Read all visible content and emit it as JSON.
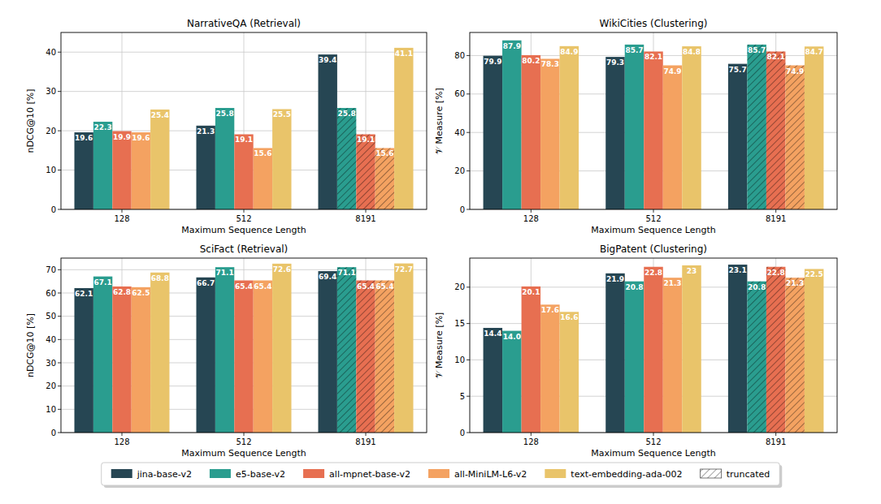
{
  "chart_data": [
    {
      "type": "bar",
      "title": "NarrativeQA (Retrieval)",
      "x_label": "Maximum Sequence Length",
      "y_label": "nDCG@10 [%]",
      "categories": [
        "128",
        "512",
        "8191"
      ],
      "ylim": [
        0,
        45
      ],
      "yticks": [
        0,
        10,
        20,
        30,
        40
      ],
      "grid": true,
      "data_labels": true,
      "legend": "bottom",
      "series": [
        {
          "name": "jina-base-v2",
          "color": "#264653",
          "values": [
            19.6,
            21.3,
            39.4
          ],
          "truncated": [
            false,
            false,
            false
          ]
        },
        {
          "name": "e5-base-v2",
          "color": "#2a9d8f",
          "values": [
            22.3,
            25.8,
            25.8
          ],
          "truncated": [
            false,
            false,
            true
          ]
        },
        {
          "name": "all-mpnet-base-v2",
          "color": "#e76f51",
          "values": [
            19.9,
            19.1,
            19.1
          ],
          "truncated": [
            false,
            false,
            true
          ]
        },
        {
          "name": "all-MiniLM-L6-v2",
          "color": "#f4a261",
          "values": [
            19.6,
            15.6,
            15.6
          ],
          "truncated": [
            false,
            false,
            true
          ]
        },
        {
          "name": "text-embedding-ada-002",
          "color": "#e9c46a",
          "values": [
            25.4,
            25.5,
            41.1
          ],
          "truncated": [
            false,
            false,
            false
          ]
        }
      ]
    },
    {
      "type": "bar",
      "title": "WikiCities (Clustering)",
      "x_label": "Maximum Sequence Length",
      "y_label": "𝒱 Measure [%]",
      "categories": [
        "128",
        "512",
        "8191"
      ],
      "ylim": [
        0,
        92
      ],
      "yticks": [
        0,
        20,
        40,
        60,
        80
      ],
      "grid": true,
      "data_labels": true,
      "series": [
        {
          "name": "jina-base-v2",
          "color": "#264653",
          "values": [
            79.9,
            79.3,
            75.7
          ],
          "truncated": [
            false,
            false,
            false
          ]
        },
        {
          "name": "e5-base-v2",
          "color": "#2a9d8f",
          "values": [
            87.9,
            85.7,
            85.7
          ],
          "truncated": [
            false,
            false,
            true
          ]
        },
        {
          "name": "all-mpnet-base-v2",
          "color": "#e76f51",
          "values": [
            80.2,
            82.1,
            82.1
          ],
          "truncated": [
            false,
            false,
            true
          ]
        },
        {
          "name": "all-MiniLM-L6-v2",
          "color": "#f4a261",
          "values": [
            78.3,
            74.9,
            74.9
          ],
          "truncated": [
            false,
            false,
            true
          ]
        },
        {
          "name": "text-embedding-ada-002",
          "color": "#e9c46a",
          "values": [
            84.9,
            84.8,
            84.7
          ],
          "truncated": [
            false,
            false,
            false
          ]
        }
      ]
    },
    {
      "type": "bar",
      "title": "SciFact (Retrieval)",
      "x_label": "Maximum Sequence Length",
      "y_label": "nDCG@10 [%]",
      "categories": [
        "128",
        "512",
        "8191"
      ],
      "ylim": [
        0,
        75
      ],
      "yticks": [
        0,
        10,
        20,
        30,
        40,
        50,
        60,
        70
      ],
      "grid": true,
      "data_labels": true,
      "series": [
        {
          "name": "jina-base-v2",
          "color": "#264653",
          "values": [
            62.1,
            66.7,
            69.4
          ],
          "truncated": [
            false,
            false,
            false
          ]
        },
        {
          "name": "e5-base-v2",
          "color": "#2a9d8f",
          "values": [
            67.1,
            71.1,
            71.1
          ],
          "truncated": [
            false,
            false,
            true
          ]
        },
        {
          "name": "all-mpnet-base-v2",
          "color": "#e76f51",
          "values": [
            62.8,
            65.4,
            65.4
          ],
          "truncated": [
            false,
            false,
            true
          ]
        },
        {
          "name": "all-MiniLM-L6-v2",
          "color": "#f4a261",
          "values": [
            62.5,
            65.4,
            65.4
          ],
          "truncated": [
            false,
            false,
            true
          ]
        },
        {
          "name": "text-embedding-ada-002",
          "color": "#e9c46a",
          "values": [
            68.8,
            72.6,
            72.7
          ],
          "truncated": [
            false,
            false,
            false
          ]
        }
      ]
    },
    {
      "type": "bar",
      "title": "BigPatent (Clustering)",
      "x_label": "Maximum Sequence Length",
      "y_label": "𝒱 Measure [%]",
      "categories": [
        "128",
        "512",
        "8191"
      ],
      "ylim": [
        0,
        24
      ],
      "yticks": [
        0,
        5,
        10,
        15,
        20
      ],
      "grid": true,
      "data_labels": true,
      "series": [
        {
          "name": "jina-base-v2",
          "color": "#264653",
          "values": [
            14.4,
            21.9,
            23.1
          ],
          "truncated": [
            false,
            false,
            false
          ]
        },
        {
          "name": "e5-base-v2",
          "color": "#2a9d8f",
          "values": [
            14.0,
            20.8,
            20.8
          ],
          "value_labels": [
            "14.0",
            "20.8",
            "20.8"
          ],
          "truncated": [
            false,
            false,
            true
          ]
        },
        {
          "name": "all-mpnet-base-v2",
          "color": "#e76f51",
          "values": [
            20.1,
            22.8,
            22.8
          ],
          "truncated": [
            false,
            false,
            true
          ]
        },
        {
          "name": "all-MiniLM-L6-v2",
          "color": "#f4a261",
          "values": [
            17.6,
            21.3,
            21.3
          ],
          "truncated": [
            false,
            false,
            true
          ]
        },
        {
          "name": "text-embedding-ada-002",
          "color": "#e9c46a",
          "values": [
            16.6,
            23.0,
            22.5
          ],
          "truncated": [
            false,
            false,
            false
          ]
        }
      ]
    }
  ],
  "hatch_legend": "truncated"
}
